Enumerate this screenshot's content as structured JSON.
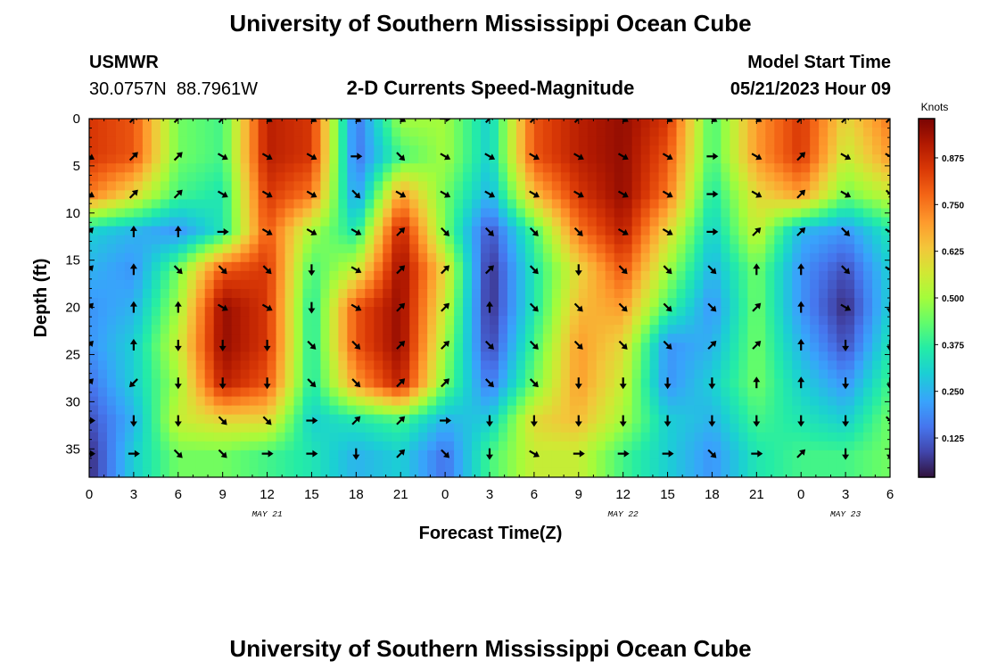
{
  "page": {
    "title": "University of Southern Mississippi Ocean Cube",
    "footer_title": "University of Southern Mississippi Ocean Cube",
    "station": "USMWR",
    "coords": "30.0757N  88.7961W",
    "model_start_label": "Model Start Time",
    "model_start_value": "05/21/2023 Hour 09"
  },
  "chart_data": {
    "type": "heatmap",
    "title": "2-D Currents Speed-Magnitude",
    "xlabel": "Forecast Time(Z)",
    "ylabel": "Depth (ft)",
    "x_tick_labels": [
      "0",
      "3",
      "6",
      "9",
      "12",
      "15",
      "18",
      "21",
      "0",
      "3",
      "6",
      "9",
      "12",
      "15",
      "18",
      "21",
      "0",
      "3",
      "6"
    ],
    "y_ticks": [
      0,
      5,
      10,
      15,
      20,
      25,
      30,
      35
    ],
    "xlim": [
      0,
      54
    ],
    "ylim": [
      0,
      38
    ],
    "date_labels": [
      {
        "text": "MAY 21",
        "x": 12
      },
      {
        "text": "MAY 22",
        "x": 36
      },
      {
        "text": "MAY 23",
        "x": 51
      }
    ],
    "colorbar": {
      "label": "Knots",
      "ticks": [
        "0.875",
        "0.750",
        "0.625",
        "0.500",
        "0.375",
        "0.250",
        "0.125"
      ],
      "tick_values": [
        0.875,
        0.75,
        0.625,
        0.5,
        0.375,
        0.25,
        0.125
      ],
      "range": [
        0.02,
        0.98
      ]
    },
    "arrow_columns_x": [
      0,
      3,
      6,
      9,
      12,
      15,
      18,
      21,
      24,
      27,
      30,
      33,
      36,
      39,
      42,
      45,
      48,
      51,
      54
    ],
    "arrow_rows_depth": [
      0,
      4,
      8,
      12,
      16,
      20,
      24,
      28,
      32,
      35.5
    ],
    "speed_field": {
      "columns": [
        0,
        3,
        6,
        9,
        12,
        15,
        18,
        21,
        24,
        27,
        30,
        33,
        36,
        39,
        42,
        45,
        48,
        51,
        54
      ],
      "rows": [
        0,
        4,
        8,
        12,
        16,
        20,
        24,
        28,
        32,
        35.5
      ],
      "values": [
        [
          0.85,
          0.8,
          0.45,
          0.4,
          0.9,
          0.85,
          0.15,
          0.5,
          0.5,
          0.3,
          0.8,
          0.9,
          0.95,
          0.85,
          0.4,
          0.7,
          0.85,
          0.6,
          0.75
        ],
        [
          0.85,
          0.8,
          0.45,
          0.4,
          0.9,
          0.85,
          0.15,
          0.4,
          0.5,
          0.3,
          0.8,
          0.9,
          0.95,
          0.8,
          0.4,
          0.7,
          0.85,
          0.55,
          0.7
        ],
        [
          0.75,
          0.6,
          0.4,
          0.35,
          0.85,
          0.75,
          0.2,
          0.7,
          0.45,
          0.25,
          0.65,
          0.85,
          0.95,
          0.75,
          0.35,
          0.6,
          0.7,
          0.45,
          0.55
        ],
        [
          0.3,
          0.25,
          0.2,
          0.35,
          0.8,
          0.5,
          0.35,
          0.9,
          0.45,
          0.1,
          0.4,
          0.75,
          0.9,
          0.6,
          0.3,
          0.55,
          0.25,
          0.2,
          0.35
        ],
        [
          0.25,
          0.2,
          0.45,
          0.8,
          0.85,
          0.4,
          0.55,
          0.95,
          0.6,
          0.05,
          0.35,
          0.6,
          0.8,
          0.5,
          0.25,
          0.45,
          0.2,
          0.1,
          0.3
        ],
        [
          0.2,
          0.25,
          0.5,
          0.95,
          0.85,
          0.35,
          0.8,
          0.95,
          0.55,
          0.05,
          0.35,
          0.65,
          0.7,
          0.4,
          0.2,
          0.45,
          0.2,
          0.05,
          0.3
        ],
        [
          0.2,
          0.3,
          0.55,
          0.95,
          0.85,
          0.35,
          0.8,
          0.95,
          0.5,
          0.08,
          0.4,
          0.7,
          0.6,
          0.2,
          0.25,
          0.45,
          0.25,
          0.1,
          0.35
        ],
        [
          0.15,
          0.3,
          0.5,
          0.9,
          0.8,
          0.35,
          0.7,
          0.9,
          0.45,
          0.15,
          0.45,
          0.7,
          0.55,
          0.2,
          0.3,
          0.45,
          0.3,
          0.2,
          0.4
        ],
        [
          0.1,
          0.25,
          0.55,
          0.6,
          0.6,
          0.3,
          0.35,
          0.4,
          0.25,
          0.3,
          0.6,
          0.65,
          0.5,
          0.3,
          0.25,
          0.4,
          0.35,
          0.3,
          0.45
        ],
        [
          0.05,
          0.3,
          0.45,
          0.45,
          0.4,
          0.35,
          0.25,
          0.3,
          0.15,
          0.4,
          0.55,
          0.55,
          0.4,
          0.3,
          0.2,
          0.35,
          0.4,
          0.4,
          0.45
        ]
      ]
    },
    "arrow_angles_deg": [
      [
        45,
        45,
        45,
        45,
        -30,
        -30,
        -30,
        -30,
        0,
        45,
        45,
        45,
        -30,
        -30,
        -30,
        -30,
        45,
        45,
        45
      ],
      [
        -30,
        45,
        45,
        -30,
        -30,
        -30,
        0,
        -45,
        -30,
        -30,
        -30,
        -30,
        -30,
        -30,
        0,
        -30,
        45,
        -30,
        -30
      ],
      [
        -30,
        45,
        45,
        -30,
        -30,
        -30,
        -45,
        -30,
        -30,
        -30,
        -30,
        -30,
        -30,
        -30,
        0,
        -30,
        45,
        -30,
        -45
      ],
      [
        45,
        90,
        90,
        0,
        -30,
        -30,
        -30,
        45,
        -45,
        -45,
        -45,
        -45,
        -30,
        -30,
        0,
        45,
        45,
        -45,
        -30
      ],
      [
        45,
        90,
        -45,
        -45,
        -45,
        -90,
        -30,
        45,
        45,
        45,
        -45,
        -90,
        -45,
        -45,
        -45,
        90,
        90,
        -45,
        -30
      ],
      [
        45,
        90,
        90,
        -30,
        -30,
        -90,
        -30,
        45,
        45,
        90,
        -45,
        -45,
        -45,
        -45,
        -45,
        45,
        90,
        -30,
        -90
      ],
      [
        45,
        90,
        -90,
        -90,
        -90,
        -45,
        -45,
        45,
        45,
        -45,
        -45,
        -45,
        -45,
        -45,
        45,
        45,
        90,
        -90,
        -90
      ],
      [
        45,
        -135,
        -90,
        -90,
        -90,
        -45,
        -45,
        45,
        45,
        -45,
        -45,
        -90,
        -90,
        -90,
        -90,
        90,
        90,
        -90,
        -90
      ],
      [
        0,
        -90,
        -90,
        -45,
        -45,
        0,
        45,
        45,
        0,
        -90,
        -90,
        -90,
        -90,
        -90,
        -90,
        -90,
        -90,
        -90,
        -45
      ],
      [
        0,
        0,
        -45,
        -45,
        0,
        0,
        -90,
        45,
        -45,
        -90,
        -30,
        0,
        0,
        0,
        -45,
        0,
        45,
        -90,
        -90
      ]
    ]
  }
}
